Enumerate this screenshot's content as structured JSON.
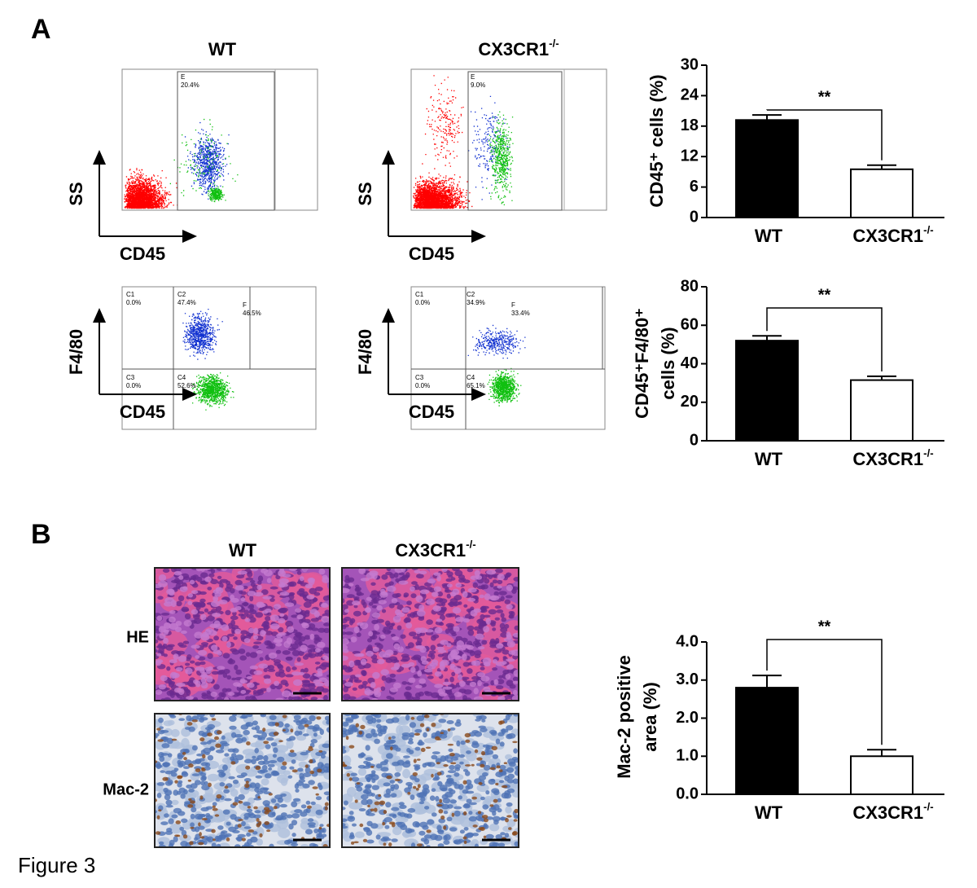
{
  "figure_caption": "Figure 3",
  "panel_a": {
    "label": "A",
    "flow_plots": [
      {
        "title": "WT",
        "x_axis": "CD45",
        "y_axis": "SS",
        "gates": [
          {
            "name": "E",
            "percent": "20.4%"
          }
        ]
      },
      {
        "title": "CX3CR1-/-",
        "x_axis": "CD45",
        "y_axis": "SS",
        "gates": [
          {
            "name": "E",
            "percent": "9.0%"
          }
        ]
      },
      {
        "x_axis": "CD45",
        "y_axis": "F4/80",
        "gates": [
          {
            "name": "C1",
            "percent": "0.0%"
          },
          {
            "name": "C2",
            "percent": "47.4%"
          },
          {
            "name": "F",
            "percent": "46.5%"
          },
          {
            "name": "C3",
            "percent": "0.0%"
          },
          {
            "name": "C4",
            "percent": "52.6%"
          }
        ]
      },
      {
        "x_axis": "CD45",
        "y_axis": "F4/80",
        "gates": [
          {
            "name": "C1",
            "percent": "0.0%"
          },
          {
            "name": "C2",
            "percent": "34.9%"
          },
          {
            "name": "F",
            "percent": "33.4%"
          },
          {
            "name": "C3",
            "percent": "0.0%"
          },
          {
            "name": "C4",
            "percent": "65.1%"
          }
        ]
      }
    ]
  },
  "panel_b": {
    "label": "B",
    "column_titles": [
      "WT",
      "CX3CR1-/-"
    ],
    "row_labels": [
      "HE",
      "Mac-2"
    ]
  },
  "chart_data": [
    {
      "type": "bar",
      "y_label": [
        "CD45⁺ cells (%)"
      ],
      "categories": [
        "WT",
        "CX3CR1-/-"
      ],
      "values": [
        19.2,
        9.5
      ],
      "errors": [
        1.0,
        0.8
      ],
      "colors": [
        "#000000",
        "#ffffff"
      ],
      "ylim": [
        0,
        30
      ],
      "yticks": [
        0,
        6,
        12,
        18,
        24,
        30
      ],
      "annotation": "**"
    },
    {
      "type": "bar",
      "y_label": [
        "CD45⁺F4/80⁺",
        "cells (%)"
      ],
      "categories": [
        "WT",
        "CX3CR1-/-"
      ],
      "values": [
        52,
        31.5
      ],
      "errors": [
        2.5,
        2
      ],
      "colors": [
        "#000000",
        "#ffffff"
      ],
      "ylim": [
        0,
        80
      ],
      "yticks": [
        0,
        20,
        40,
        60,
        80
      ],
      "annotation": "**"
    },
    {
      "type": "bar",
      "y_label": [
        "Mac-2 positive",
        "area (%)"
      ],
      "categories": [
        "WT",
        "CX3CR1-/-"
      ],
      "values": [
        2.8,
        1.0
      ],
      "errors": [
        0.32,
        0.17
      ],
      "colors": [
        "#000000",
        "#ffffff"
      ],
      "ylim": [
        0,
        4
      ],
      "yticks": [
        {
          "value": 0,
          "label": "0.0"
        },
        {
          "value": 1,
          "label": "1.0"
        },
        {
          "value": 2,
          "label": "2.0"
        },
        {
          "value": 3,
          "label": "3.0"
        },
        {
          "value": 4,
          "label": "4.0"
        }
      ],
      "annotation": "**"
    }
  ]
}
